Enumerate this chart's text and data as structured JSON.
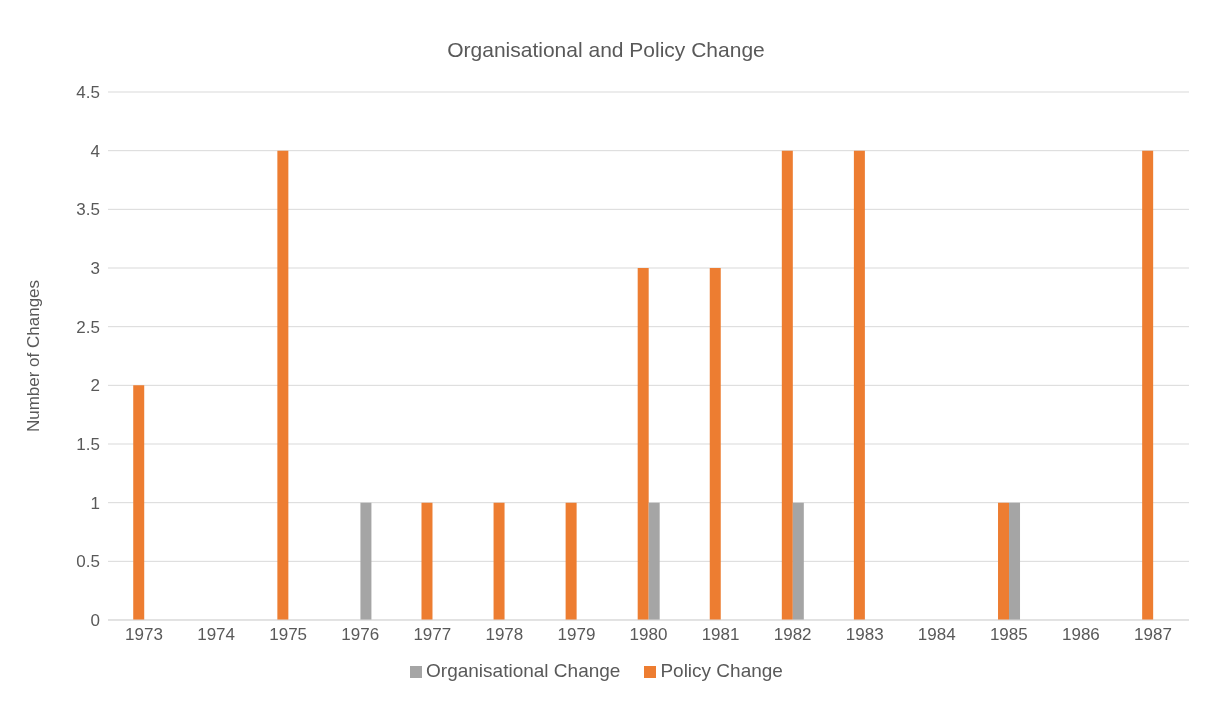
{
  "chart_data": {
    "type": "bar",
    "title": "Organisational and Policy Change",
    "ylabel": "Number of Changes",
    "categories": [
      "1973",
      "1974",
      "1975",
      "1976",
      "1977",
      "1978",
      "1979",
      "1980",
      "1981",
      "1982",
      "1983",
      "1984",
      "1985",
      "1986",
      "1987"
    ],
    "series": [
      {
        "name": "Policy Change",
        "color": "#ed7d31",
        "values": [
          2,
          0,
          4,
          0,
          1,
          1,
          1,
          3,
          3,
          4,
          4,
          0,
          1,
          0,
          4
        ]
      },
      {
        "name": "Organisational Change",
        "color": "#a5a5a5",
        "values": [
          0,
          0,
          0,
          1,
          0,
          0,
          0,
          1,
          0,
          1,
          0,
          0,
          1,
          0,
          0
        ]
      }
    ],
    "ylim": [
      0,
      4.5
    ],
    "yticks": [
      0,
      0.5,
      1,
      1.5,
      2,
      2.5,
      3,
      3.5,
      4,
      4.5
    ],
    "grid": "y",
    "legend": "bottom"
  }
}
